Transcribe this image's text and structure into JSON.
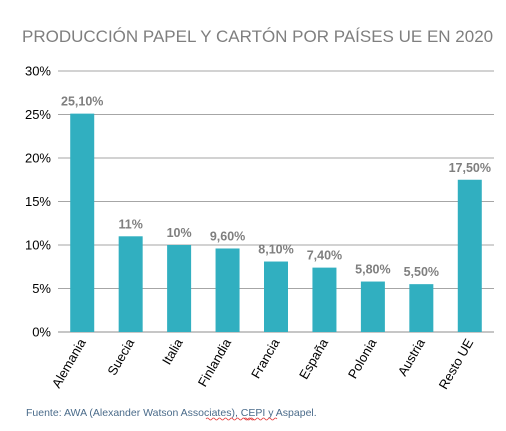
{
  "chart_data": {
    "type": "bar",
    "title": "PRODUCCIÓN PAPEL Y CARTÓN POR PAÍSES UE EN 2020",
    "xlabel": "",
    "ylabel": "",
    "categories": [
      "Alemania",
      "Suecia",
      "Italia",
      "Finlandia",
      "Francia",
      "España",
      "Polonia",
      "Austria",
      "Resto UE"
    ],
    "values": [
      25.1,
      11,
      10,
      9.6,
      8.1,
      7.4,
      5.8,
      5.5,
      17.5
    ],
    "data_labels": [
      "25,10%",
      "11%",
      "10%",
      "9,60%",
      "8,10%",
      "7,40%",
      "5,80%",
      "5,50%",
      "17,50%"
    ],
    "ylim": [
      0,
      30
    ],
    "yticks": [
      0,
      5,
      10,
      15,
      20,
      25,
      30
    ],
    "ytick_labels": [
      "0%",
      "5%",
      "10%",
      "15%",
      "20%",
      "25%",
      "30%"
    ],
    "grid": true,
    "legend": "none",
    "bar_color": "#31afc0",
    "source": {
      "prefix": "Fuente: AWA (Alexander Watson ",
      "associates": "Associates",
      "middle": "), CEPI y ",
      "aspapel": "Aspapel",
      "suffix": "."
    }
  }
}
